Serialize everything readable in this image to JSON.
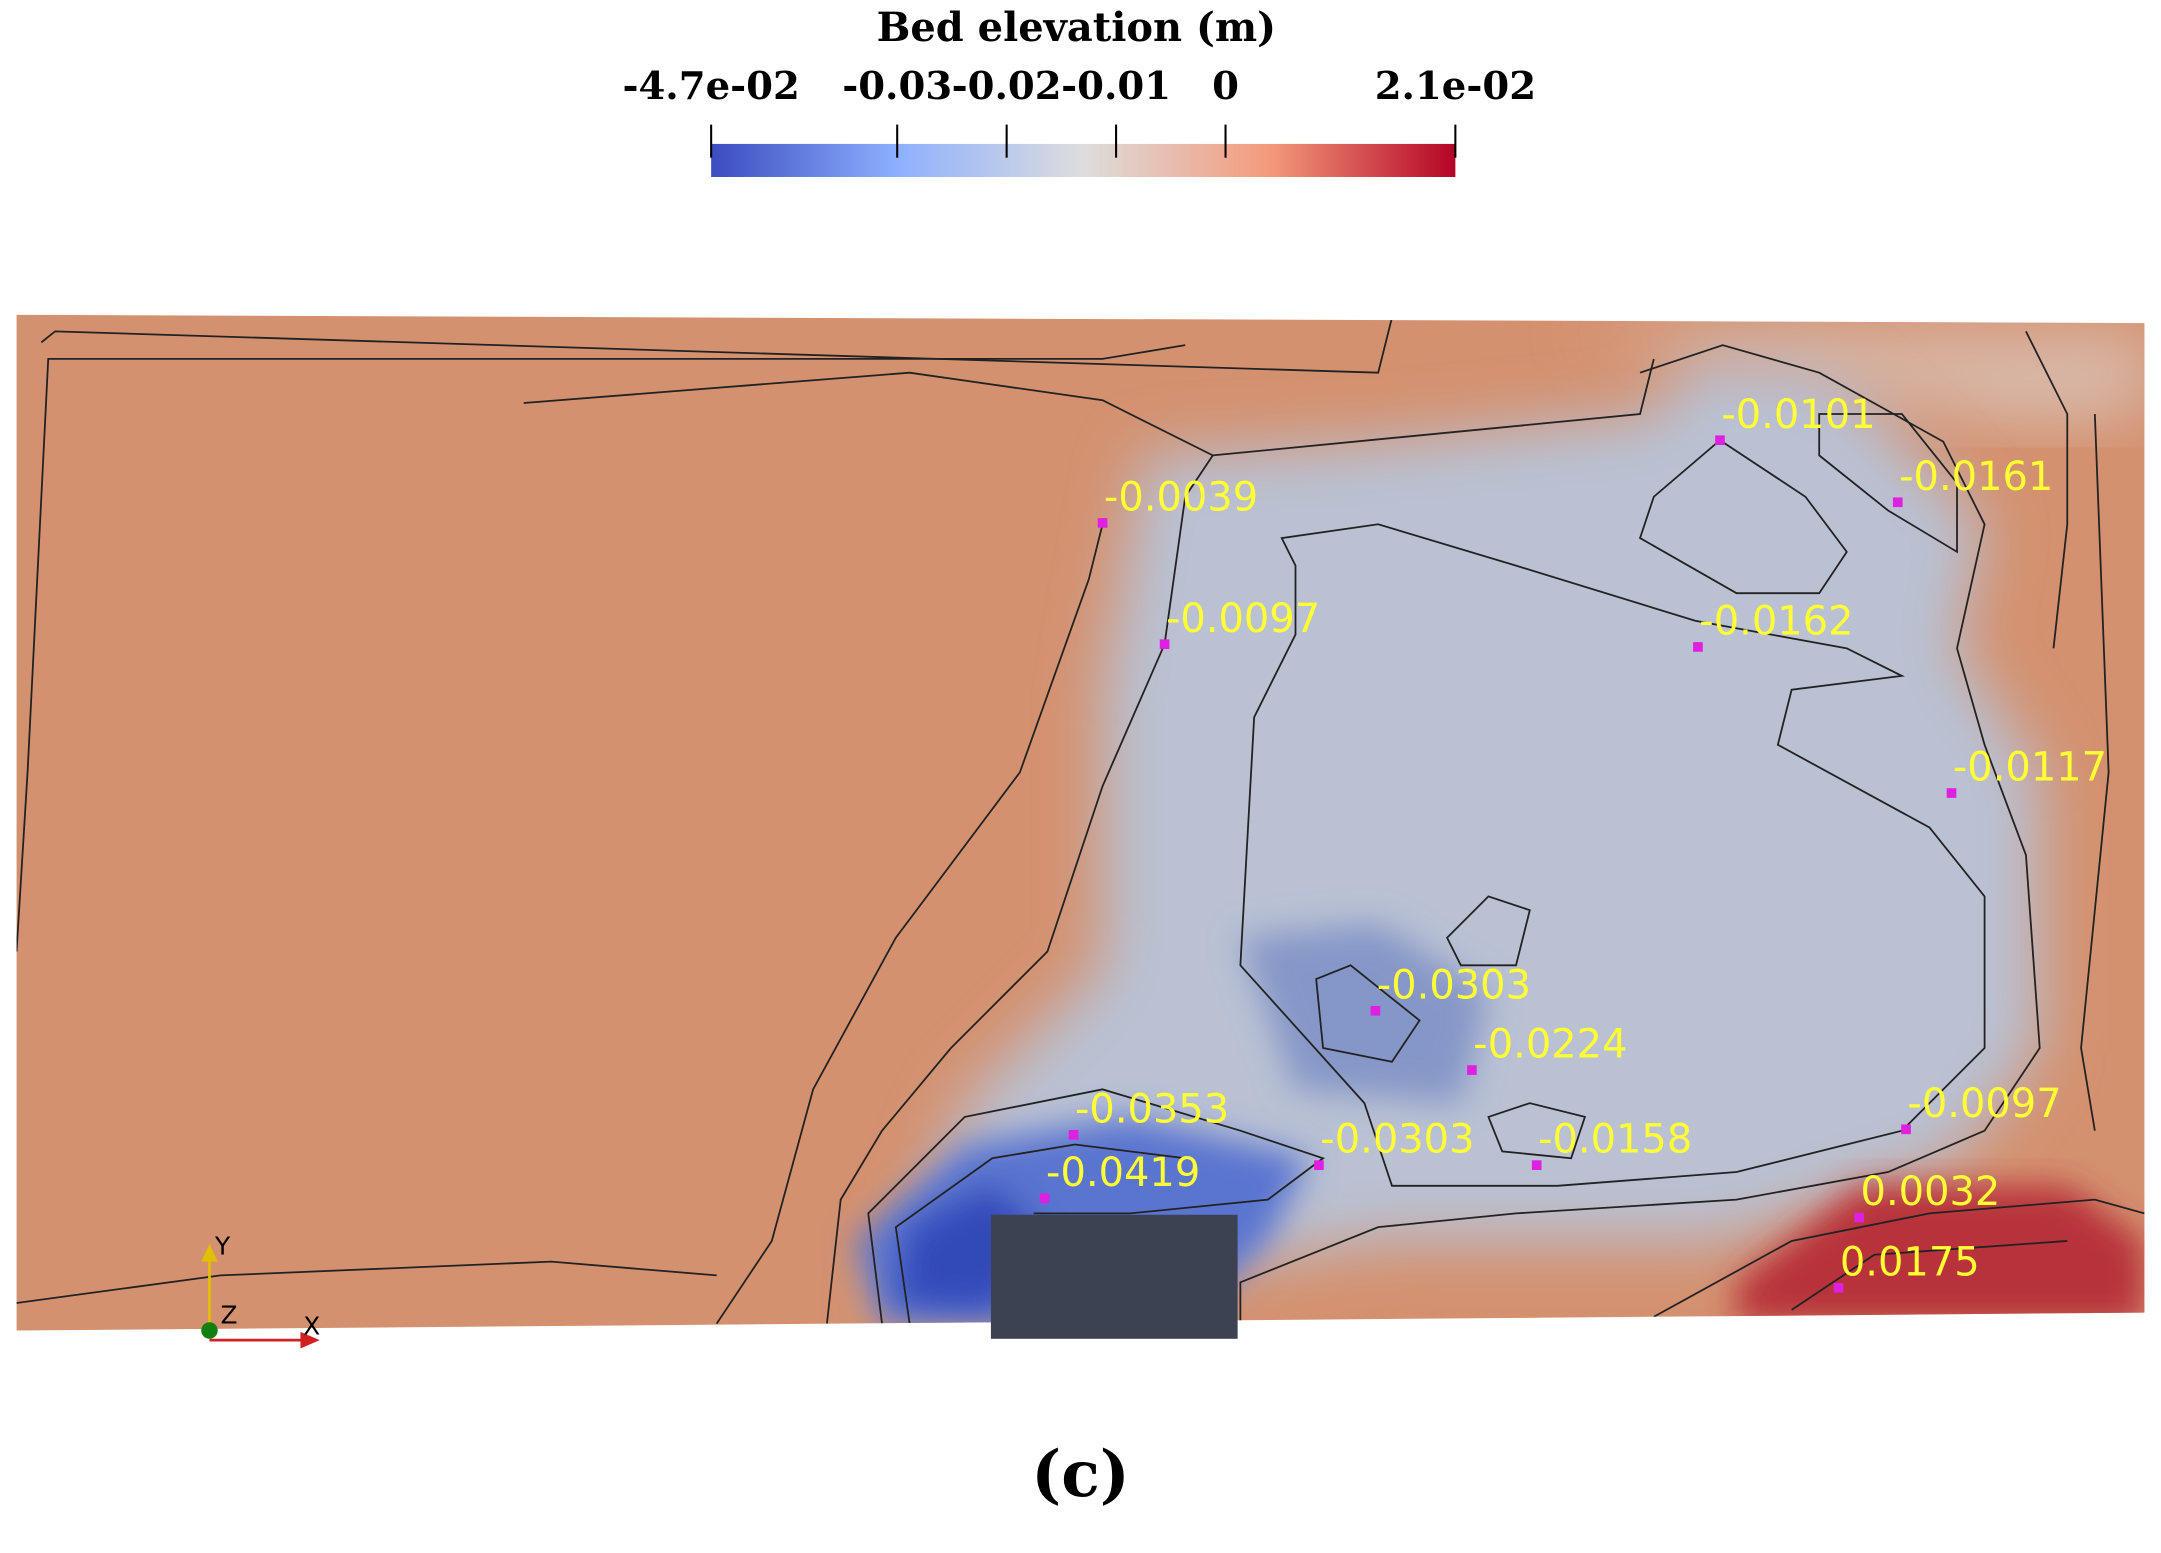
{
  "chart_data": {
    "type": "contour",
    "title": "Bed elevation (m)",
    "clim": [
      -0.047,
      0.021
    ],
    "cticks": [
      {
        "value": -0.047,
        "label": "-4.7e-02"
      },
      -0.03,
      -0.02,
      -0.01,
      0,
      {
        "value": 0.021,
        "label": "2.1e-02"
      }
    ],
    "colormap": [
      "#3b4cc0",
      "#8db0fe",
      "#dddddd",
      "#f49a7b",
      "#b40426"
    ],
    "label_color": "#ffff33",
    "marker_color": "#e020e0",
    "values": [
      -0.0101,
      -0.0161,
      -0.0039,
      -0.0097,
      -0.0162,
      -0.0117,
      -0.0303,
      -0.0224,
      -0.0353,
      -0.0303,
      -0.0158,
      -0.0097,
      0.0032,
      -0.0419,
      0.0175
    ],
    "axes": [
      "X",
      "Y",
      "Z"
    ],
    "caption": "(c)"
  }
}
